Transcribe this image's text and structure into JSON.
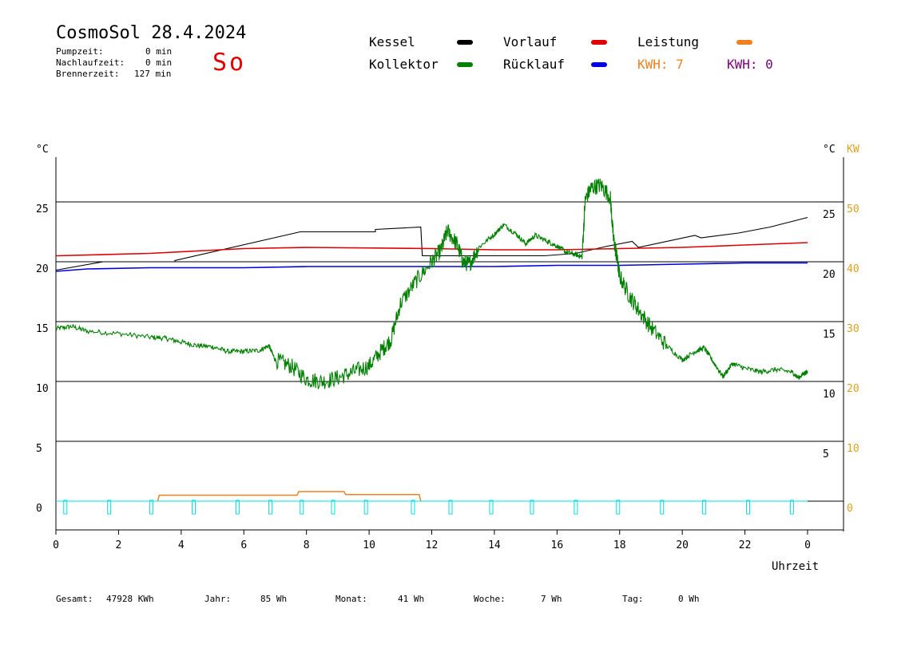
{
  "header": {
    "title": "CosmoSol 28.4.2024",
    "day": "So",
    "stats": [
      {
        "label": "Pumpzeit:",
        "value": "0 min"
      },
      {
        "label": "Nachlaufzeit:",
        "value": "0 min"
      },
      {
        "label": "Brennerzeit:",
        "value": "127 min"
      }
    ]
  },
  "legend": {
    "kessel": "Kessel",
    "kollektor": "Kollektor",
    "vorlauf": "Vorlauf",
    "ruecklauf": "Rücklauf",
    "leistung": "Leistung",
    "kwh1": "KWH: 7",
    "kwh2": "KWH: 0"
  },
  "colors": {
    "kessel": "#000000",
    "kollektor": "#008000",
    "vorlauf": "#e00000",
    "ruecklauf": "#0000e0",
    "leistung": "#f08020",
    "kwh2": "#800080",
    "pump": "#00e0e0",
    "day": "#e00000"
  },
  "footer": [
    {
      "label": "Gesamt:",
      "value": "47928 KWh"
    },
    {
      "label": "Jahr:",
      "value": "85 Wh"
    },
    {
      "label": "Monat:",
      "value": "41 Wh"
    },
    {
      "label": "Woche:",
      "value": "7 Wh"
    },
    {
      "label": "Tag:",
      "value": "0 Wh"
    }
  ],
  "chart_data": {
    "type": "line",
    "xlabel": "Uhrzeit",
    "ylabel_left": "°C",
    "ylabel_right": "°C",
    "ylabel_right2": "KW",
    "xlim": [
      0,
      24
    ],
    "ylim": [
      -2.5,
      29
    ],
    "x_ticks": [
      "0",
      "2",
      "4",
      "6",
      "8",
      "10",
      "12",
      "14",
      "16",
      "18",
      "20",
      "22",
      "0"
    ],
    "y_ticks_left": [
      "0",
      "5",
      "10",
      "15",
      "20",
      "25"
    ],
    "y_ticks_right": [
      "5",
      "10",
      "15",
      "20",
      "25"
    ],
    "y_ticks_kw": [
      "0",
      "10",
      "20",
      "30",
      "40",
      "50"
    ],
    "gridlines_y": [
      0,
      5,
      10,
      15,
      20,
      25
    ],
    "series": [
      {
        "name": "Kessel",
        "key": "kessel",
        "x": [
          0,
          1.5,
          1.5,
          3.8,
          3.8,
          7.8,
          10.2,
          10.2,
          11.65,
          11.65,
          11.7,
          15.6,
          16.6,
          17.6,
          18.4,
          18.6,
          20.4,
          20.6,
          21.8,
          22.8,
          24
        ],
        "y": [
          19.3,
          20.0,
          20.0,
          20.0,
          20.1,
          22.5,
          22.5,
          22.7,
          22.9,
          22.9,
          20.5,
          20.5,
          20.7,
          21.3,
          21.7,
          21.2,
          22.2,
          22.0,
          22.4,
          22.9,
          23.7
        ]
      },
      {
        "name": "Vorlauf",
        "key": "vorlauf",
        "x": [
          0,
          3,
          6,
          8,
          12,
          14,
          16,
          18,
          20,
          22,
          24
        ],
        "y": [
          20.5,
          20.7,
          21.1,
          21.2,
          21.1,
          21.0,
          21.0,
          21.1,
          21.2,
          21.4,
          21.6
        ]
      },
      {
        "name": "Rücklauf",
        "key": "ruecklauf",
        "x": [
          0,
          1,
          3,
          6,
          8,
          10,
          12,
          14,
          16,
          18,
          20,
          22,
          24
        ],
        "y": [
          19.2,
          19.4,
          19.5,
          19.5,
          19.6,
          19.6,
          19.6,
          19.6,
          19.7,
          19.7,
          19.8,
          19.9,
          19.9
        ],
        "clipped": "Rücklauf"
      },
      {
        "name": "Kollektor",
        "key": "kollektor",
        "x": [
          0,
          0.5,
          1.0,
          2.0,
          3.0,
          3.5,
          4.0,
          4.5,
          5.0,
          5.5,
          6.0,
          6.5,
          6.8,
          7.0,
          7.5,
          8.0,
          8.5,
          9.0,
          9.5,
          10.0,
          10.4,
          10.7,
          11.0,
          11.5,
          12.0,
          12.3,
          12.5,
          12.8,
          13.0,
          13.2,
          13.5,
          14.0,
          14.3,
          14.7,
          15.0,
          15.3,
          15.7,
          16.0,
          16.3,
          16.6,
          16.8,
          16.9,
          17.1,
          17.4,
          17.7,
          17.8,
          17.9,
          18.0,
          18.3,
          18.6,
          19.0,
          19.5,
          20.0,
          20.4,
          20.7,
          21.0,
          21.3,
          21.6,
          22.0,
          22.5,
          23.0,
          23.5,
          23.7,
          23.9,
          24
        ],
        "y": [
          14.4,
          14.6,
          14.2,
          14.0,
          13.7,
          13.6,
          13.3,
          13.0,
          12.9,
          12.5,
          12.5,
          12.6,
          13.0,
          11.8,
          11.3,
          10.2,
          10.0,
          10.3,
          10.8,
          11.3,
          12.6,
          13.5,
          16.5,
          18.4,
          20.0,
          21.0,
          22.6,
          21.5,
          20.0,
          19.8,
          21.2,
          22.3,
          23.1,
          22.3,
          21.5,
          22.2,
          21.7,
          21.3,
          20.8,
          20.6,
          20.4,
          25.2,
          26.2,
          26.4,
          25.4,
          22.0,
          20.5,
          18.8,
          17.2,
          16.0,
          14.5,
          13.0,
          11.8,
          12.5,
          12.8,
          11.6,
          10.4,
          11.5,
          11.1,
          10.8,
          11.0,
          10.8,
          10.3,
          10.7,
          10.8
        ]
      }
    ],
    "leistung_kw": {
      "x": [
        3.25,
        3.3,
        7.7,
        7.75,
        9.2,
        9.25,
        11.6,
        11.65
      ],
      "y": [
        0,
        1.0,
        1.0,
        1.6,
        1.6,
        1.1,
        1.1,
        0
      ]
    },
    "pump_pulses_h": [
      0.3,
      1.7,
      3.05,
      4.4,
      5.8,
      6.85,
      7.85,
      8.85,
      9.9,
      11.4,
      12.6,
      13.9,
      15.2,
      16.6,
      17.95,
      19.35,
      20.7,
      22.1,
      23.5
    ]
  }
}
